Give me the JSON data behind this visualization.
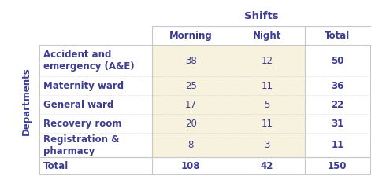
{
  "title": "Shifts",
  "col_headers": [
    "Morning",
    "Night",
    "Total"
  ],
  "row_header_label": "Departments",
  "row_labels": [
    "Accident and\nemergency (A&E)",
    "Maternity ward",
    "General ward",
    "Recovery room",
    "Registration &\npharmacy"
  ],
  "data": [
    [
      "38",
      "12",
      "50"
    ],
    [
      "25",
      "11",
      "36"
    ],
    [
      "17",
      "5",
      "22"
    ],
    [
      "20",
      "11",
      "31"
    ],
    [
      "8",
      "3",
      "11"
    ]
  ],
  "total_row": [
    "Total",
    "108",
    "42",
    "150"
  ],
  "bg_color": "#ffffff",
  "border_color": "#e8771e",
  "grid_color": "#c8c8c8",
  "data_cell_bg": "#f7f2de",
  "text_color": "#3d3d8f",
  "font_size": 8.5,
  "title_font_size": 9.5
}
